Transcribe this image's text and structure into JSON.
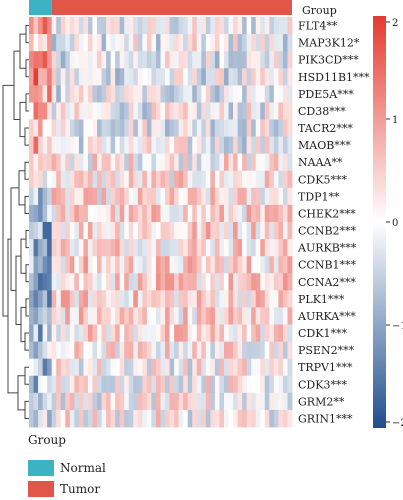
{
  "chart_data": {
    "type": "heatmap",
    "annotation_title": "Group",
    "rows": [
      "FLT4**",
      "MAP3K12*",
      "PIK3CD***",
      "HSD11B1***",
      "PDE5A***",
      "CD38***",
      "TACR2***",
      "MAOB***",
      "NAAA**",
      "CDK5***",
      "TDP1**",
      "CHEK2***",
      "CCNB2***",
      "AURKB***",
      "CCNB1***",
      "CCNA2***",
      "PLK1***",
      "AURKA***",
      "CDK1***",
      "PSEN2***",
      "TRPV1***",
      "CDK3***",
      "GRM2**",
      "GRIN1***"
    ],
    "groups": [
      {
        "name": "Normal",
        "color": "#3bb3c3",
        "samples": 5
      },
      {
        "name": "Tumor",
        "color": "#e0574a",
        "samples": 53
      }
    ],
    "colorbar": {
      "range": [
        -2,
        2
      ],
      "ticks": [
        "2",
        "1",
        "0",
        "−1",
        "−2"
      ],
      "low_color": "#1f4e8c",
      "mid_color": "#ffffff",
      "high_color": "#e53a2f"
    },
    "row_mean_normal": [
      0.9,
      0.8,
      0.9,
      1.2,
      0.9,
      0.7,
      0.7,
      0.8,
      0.2,
      0.3,
      -0.5,
      -0.8,
      -0.9,
      -0.9,
      -0.9,
      -0.9,
      -0.9,
      -0.9,
      -0.8,
      -0.6,
      -0.7,
      -0.7,
      -0.4,
      -0.5
    ],
    "row_mean_tumor": [
      -0.15,
      -0.1,
      -0.15,
      -0.2,
      -0.15,
      -0.1,
      -0.1,
      -0.1,
      0.15,
      0.2,
      0.2,
      0.3,
      0.4,
      0.35,
      0.35,
      0.35,
      0.35,
      0.35,
      0.3,
      0.15,
      0.05,
      0.1,
      0.0,
      0.05
    ]
  },
  "legend": {
    "title": "Group",
    "items": [
      {
        "label": "Normal",
        "color": "#3bb3c3"
      },
      {
        "label": "Tumor",
        "color": "#e0574a"
      }
    ]
  }
}
